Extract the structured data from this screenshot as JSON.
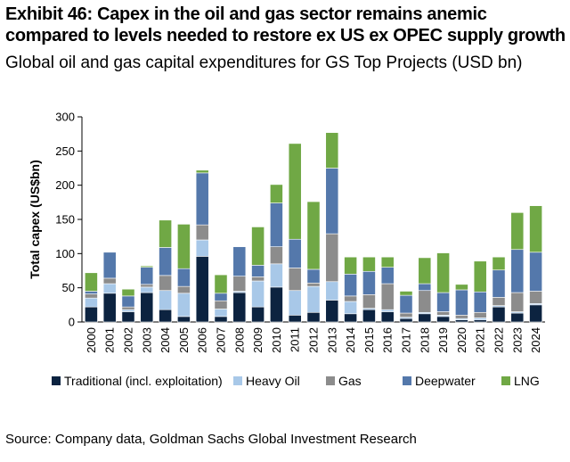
{
  "header": {
    "title": "Exhibit 46: Capex in the oil and gas sector remains anemic compared to levels needed to restore ex US ex OPEC supply growth",
    "subtitle": "Global oil and gas capital expenditures for GS Top Projects (USD bn)"
  },
  "footer": {
    "source": "Source: Company data, Goldman Sachs Global Investment Research"
  },
  "chart_data": {
    "type": "bar",
    "stacked": true,
    "ylabel": "Total capex (US$bn)",
    "ylim": [
      0,
      300
    ],
    "yticks": [
      0,
      50,
      100,
      150,
      200,
      250,
      300
    ],
    "grid": false,
    "legend_position": "bottom",
    "categories": [
      "2000",
      "2001",
      "2002",
      "2003",
      "2004",
      "2005",
      "2006",
      "2007",
      "2008",
      "2009",
      "2010",
      "2011",
      "2012",
      "2013",
      "2014",
      "2015",
      "2016",
      "2017",
      "2018",
      "2019",
      "2020",
      "2021",
      "2022",
      "2023",
      "2024"
    ],
    "series": [
      {
        "name": "Traditional (incl. exploitation)",
        "color": "#0c2340",
        "values": [
          22,
          42,
          15,
          43,
          18,
          8,
          96,
          8,
          43,
          22,
          51,
          10,
          14,
          32,
          12,
          18,
          15,
          5,
          12,
          8,
          3,
          3,
          22,
          13,
          25
        ]
      },
      {
        "name": "Heavy Oil",
        "color": "#a8c8e8",
        "values": [
          13,
          14,
          3,
          8,
          28,
          34,
          24,
          11,
          2,
          38,
          34,
          36,
          38,
          27,
          18,
          2,
          3,
          2,
          2,
          2,
          2,
          3,
          2,
          2,
          2
        ]
      },
      {
        "name": "Gas",
        "color": "#8c8c8c",
        "values": [
          6,
          8,
          4,
          4,
          22,
          10,
          22,
          12,
          22,
          6,
          25,
          33,
          5,
          70,
          8,
          20,
          38,
          6,
          32,
          5,
          5,
          8,
          12,
          28,
          18
        ]
      },
      {
        "name": "Deepwater",
        "color": "#5478ab",
        "values": [
          4,
          38,
          16,
          25,
          41,
          26,
          76,
          11,
          43,
          17,
          64,
          42,
          20,
          96,
          32,
          34,
          24,
          26,
          10,
          28,
          37,
          30,
          40,
          63,
          57
        ]
      },
      {
        "name": "LNG",
        "color": "#70a845",
        "values": [
          27,
          0,
          10,
          2,
          40,
          65,
          4,
          27,
          0,
          56,
          27,
          140,
          99,
          52,
          25,
          21,
          15,
          6,
          38,
          58,
          8,
          45,
          19,
          54,
          68
        ]
      }
    ]
  }
}
